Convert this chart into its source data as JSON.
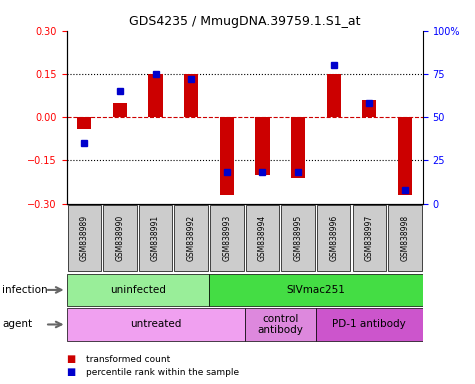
{
  "title": "GDS4235 / MmugDNA.39759.1.S1_at",
  "samples": [
    "GSM838989",
    "GSM838990",
    "GSM838991",
    "GSM838992",
    "GSM838993",
    "GSM838994",
    "GSM838995",
    "GSM838996",
    "GSM838997",
    "GSM838998"
  ],
  "transformed_count": [
    -0.04,
    0.05,
    0.15,
    0.15,
    -0.27,
    -0.2,
    -0.21,
    0.15,
    0.06,
    -0.27
  ],
  "percentile_rank": [
    35,
    65,
    75,
    72,
    18,
    18,
    18,
    80,
    58,
    8
  ],
  "ylim_left": [
    -0.3,
    0.3
  ],
  "ylim_right": [
    0,
    100
  ],
  "yticks_left": [
    -0.3,
    -0.15,
    0,
    0.15,
    0.3
  ],
  "yticks_right": [
    0,
    25,
    50,
    75,
    100
  ],
  "ytick_labels_right": [
    "0",
    "25",
    "50",
    "75",
    "100%"
  ],
  "hlines_dotted": [
    -0.15,
    0.15
  ],
  "hline_zero": 0,
  "bar_color": "#cc0000",
  "dot_color": "#0000cc",
  "infection_groups": [
    {
      "label": "uninfected",
      "start": 0,
      "end": 3,
      "color": "#99ee99"
    },
    {
      "label": "SIVmac251",
      "start": 4,
      "end": 9,
      "color": "#44dd44"
    }
  ],
  "agent_groups": [
    {
      "label": "untreated",
      "start": 0,
      "end": 4,
      "color": "#f0a0f0"
    },
    {
      "label": "control\nantibody",
      "start": 5,
      "end": 6,
      "color": "#dd88dd"
    },
    {
      "label": "PD-1 antibody",
      "start": 7,
      "end": 9,
      "color": "#cc55cc"
    }
  ],
  "legend_items": [
    {
      "label": "transformed count",
      "color": "#cc0000"
    },
    {
      "label": "percentile rank within the sample",
      "color": "#0000cc"
    }
  ],
  "infection_label": "infection",
  "agent_label": "agent",
  "sample_bg_color": "#cccccc"
}
